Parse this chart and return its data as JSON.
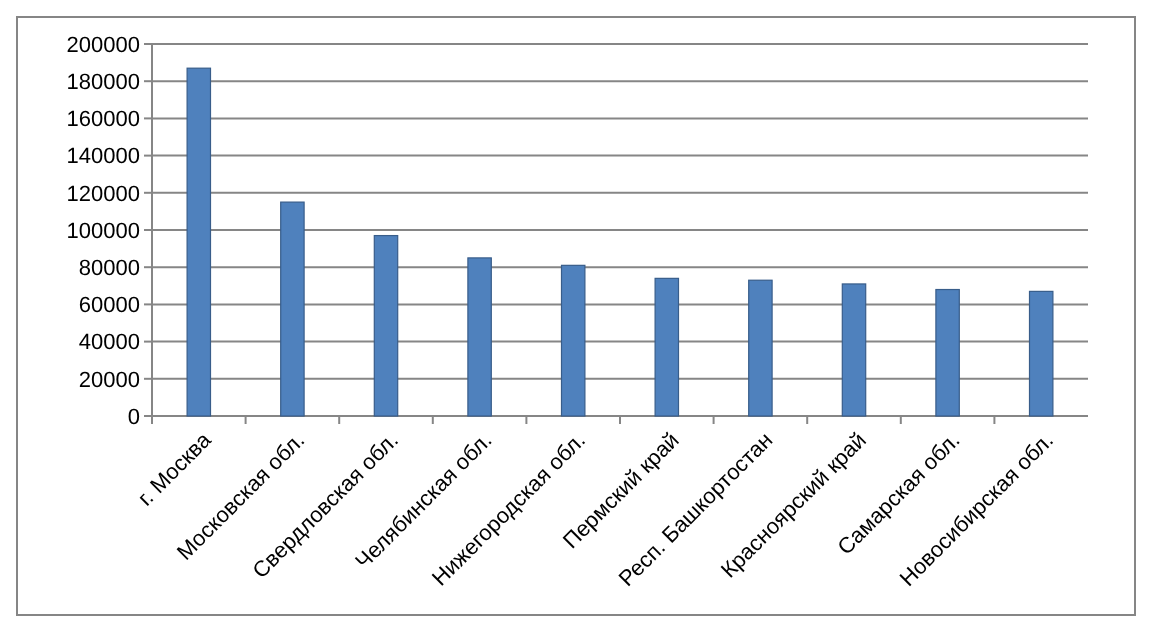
{
  "chart_data": {
    "type": "bar",
    "categories": [
      "г. Москва",
      "Московская обл.",
      "Свердловская обл.",
      "Челябинская обл.",
      "Нижегородская обл.",
      "Пермский край",
      "Респ. Башкортостан",
      "Красноярский край",
      "Самарская обл.",
      "Новосибирская обл."
    ],
    "values": [
      187000,
      115000,
      97000,
      85000,
      81000,
      74000,
      73000,
      71000,
      68000,
      67000
    ],
    "color": "#4f81bd",
    "ylim": [
      0,
      200000
    ],
    "yticks": [
      0,
      20000,
      40000,
      60000,
      80000,
      100000,
      120000,
      140000,
      160000,
      180000,
      200000
    ],
    "grid": "y"
  }
}
